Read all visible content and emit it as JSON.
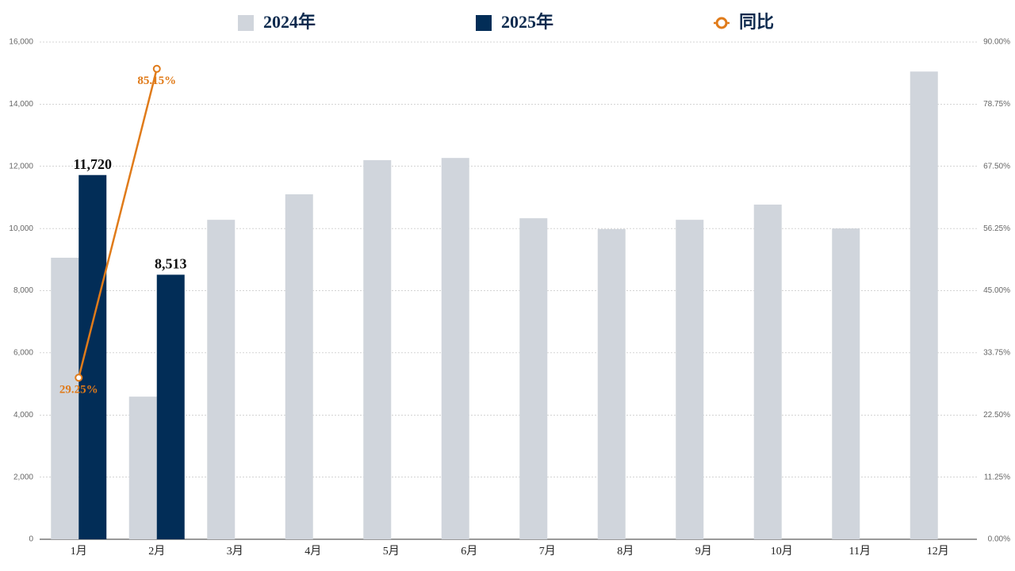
{
  "chart_data": {
    "type": "bar_line",
    "categories": [
      "1月",
      "2月",
      "3月",
      "4月",
      "5月",
      "6月",
      "7月",
      "8月",
      "9月",
      "10月",
      "11月",
      "12月"
    ],
    "series": [
      {
        "name": "2024年",
        "color": "#d0d5dc",
        "type": "bar",
        "values": [
          9060,
          4590,
          10280,
          11100,
          12200,
          12270,
          10330,
          9980,
          10280,
          10770,
          10000,
          15050
        ]
      },
      {
        "name": "2025年",
        "color": "#022d57",
        "type": "bar",
        "values": [
          11720,
          8513,
          null,
          null,
          null,
          null,
          null,
          null,
          null,
          null,
          null,
          null
        ],
        "value_labels": [
          "11,720",
          "8,513",
          null,
          null,
          null,
          null,
          null,
          null,
          null,
          null,
          null,
          null
        ]
      },
      {
        "name": "同比",
        "color": "#e07b1a",
        "type": "line",
        "axis": "y2",
        "values": [
          29.25,
          85.15,
          null,
          null,
          null,
          null,
          null,
          null,
          null,
          null,
          null,
          null
        ],
        "value_labels": [
          "29.25%",
          "85.15%",
          null,
          null,
          null,
          null,
          null,
          null,
          null,
          null,
          null,
          null
        ]
      }
    ],
    "ylim": [
      0,
      16000
    ],
    "yticks": [
      0,
      {
        "value": 2000,
        "label": "2,000"
      },
      {
        "value": 4000,
        "label": "4,000"
      },
      {
        "value": 6000,
        "label": "6,000"
      },
      {
        "value": 8000,
        "label": "8,000"
      },
      {
        "value": 10000,
        "label": "10,000"
      },
      {
        "value": 12000,
        "label": "12,000"
      },
      {
        "value": 14000,
        "label": "14,000"
      },
      {
        "value": 16000,
        "label": "16,000"
      }
    ],
    "y2lim": [
      0,
      90
    ],
    "y2ticks": [
      {
        "value": 0,
        "label": "0.00%"
      },
      {
        "value": 11.25,
        "label": "11.25%"
      },
      {
        "value": 22.5,
        "label": "22.50%"
      },
      {
        "value": 33.75,
        "label": "33.75%"
      },
      {
        "value": 45,
        "label": "45.00%"
      },
      {
        "value": 56.25,
        "label": "56.25%"
      },
      {
        "value": 67.5,
        "label": "67.50%"
      },
      {
        "value": 78.75,
        "label": "78.75%"
      },
      {
        "value": 90,
        "label": "90.00%"
      }
    ],
    "grid": true,
    "legend": "top"
  }
}
